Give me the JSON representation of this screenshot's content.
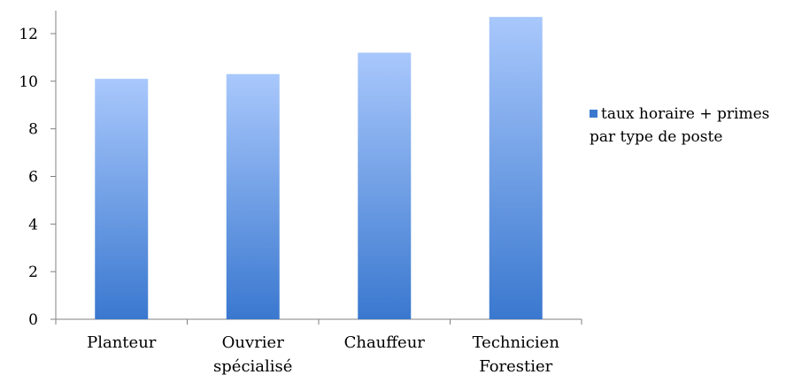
{
  "chart_data": {
    "type": "bar",
    "categories": [
      [
        "Planteur"
      ],
      [
        "Ouvrier",
        "spécialisé"
      ],
      [
        "Chauffeur"
      ],
      [
        "Technicien",
        "Forestier"
      ]
    ],
    "series": [
      {
        "name": [
          "taux horaire + primes",
          "par type de poste"
        ],
        "values": [
          10.1,
          10.3,
          11.2,
          12.7
        ]
      }
    ],
    "ylim": [
      0,
      12
    ],
    "y_ticks": [
      0,
      2,
      4,
      6,
      8,
      10,
      12
    ],
    "grid": false,
    "legend_position": "right",
    "colors": {
      "bar_top": "#A9C8FC",
      "bar_bottom": "#3A78CF",
      "axis": "#808080"
    }
  }
}
